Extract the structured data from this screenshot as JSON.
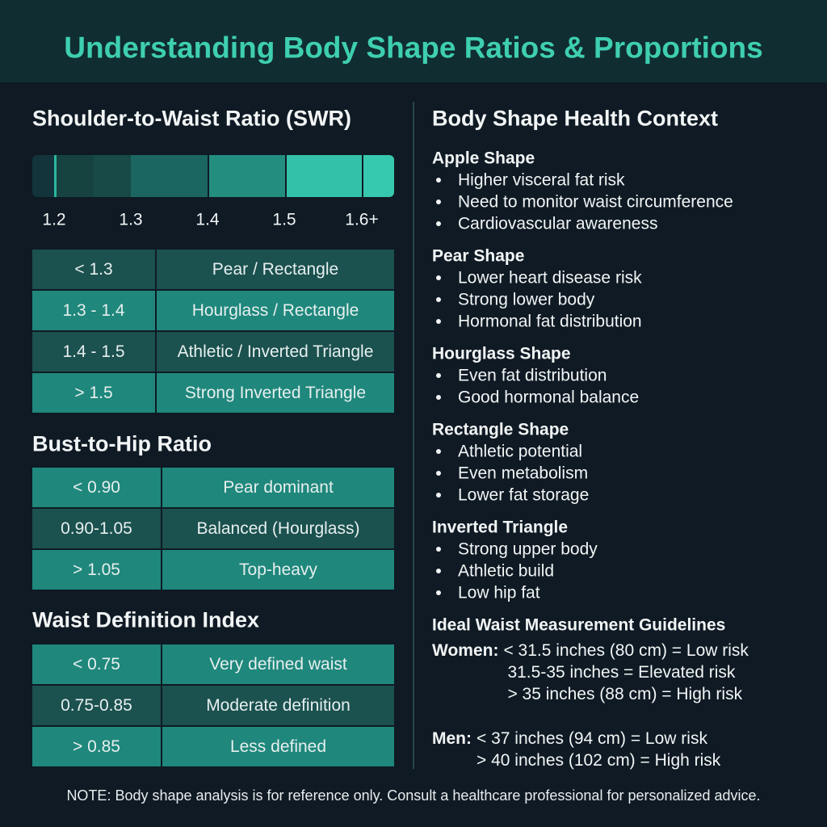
{
  "header": {
    "title": "Understanding Body Shape Ratios & Proportions"
  },
  "left": {
    "swr": {
      "title": "Shoulder-to-Waist Ratio (SWR)",
      "scale": [
        "1.2",
        "1.3",
        "1.4",
        "1.5",
        "1.6+"
      ],
      "rows": [
        [
          "< 1.3",
          "Pear / Rectangle"
        ],
        [
          "1.3 - 1.4",
          "Hourglass / Rectangle"
        ],
        [
          "1.4 - 1.5",
          "Athletic / Inverted Triangle"
        ],
        [
          "> 1.5",
          "Strong Inverted Triangle"
        ]
      ]
    },
    "bust": {
      "title": "Bust-to-Hip Ratio",
      "rows": [
        [
          "< 0.90",
          "Pear dominant"
        ],
        [
          "0.90-1.05",
          "Balanced (Hourglass)"
        ],
        [
          "> 1.05",
          "Top-heavy"
        ]
      ]
    },
    "waist": {
      "title": "Waist Definition Index",
      "rows": [
        [
          "< 0.75",
          "Very defined waist"
        ],
        [
          "0.75-0.85",
          "Moderate definition"
        ],
        [
          "> 0.85",
          "Less defined"
        ]
      ]
    }
  },
  "right": {
    "title": "Body Shape Health Context",
    "shapes": [
      {
        "name": "Apple Shape",
        "points": [
          "Higher visceral fat risk",
          "Need to monitor waist circumference",
          "Cardiovascular awareness"
        ]
      },
      {
        "name": "Pear Shape",
        "points": [
          "Lower heart disease risk",
          "Strong lower body",
          "Hormonal fat distribution"
        ]
      },
      {
        "name": "Hourglass Shape",
        "points": [
          "Even fat distribution",
          "Good hormonal balance"
        ]
      },
      {
        "name": "Rectangle Shape",
        "points": [
          "Athletic potential",
          "Even metabolism",
          "Lower fat storage"
        ]
      },
      {
        "name": "Inverted Triangle",
        "points": [
          "Strong upper body",
          "Athletic build",
          "Low hip fat"
        ]
      }
    ],
    "guidelines": {
      "title": "Ideal Waist Measurement Guidelines",
      "groups": [
        {
          "label": "Women:",
          "lines": [
            "< 31.5 inches (80 cm) = Low risk",
            "31.5-35 inches = Elevated risk",
            "> 35 inches (88 cm) = High risk"
          ]
        },
        {
          "label": "Men:",
          "lines": [
            "< 37 inches (94 cm) = Low risk",
            "> 40 inches (102 cm) = High risk"
          ]
        }
      ]
    }
  },
  "note": "NOTE: Body shape analysis is for reference only. Consult a healthcare professional for personalized advice."
}
